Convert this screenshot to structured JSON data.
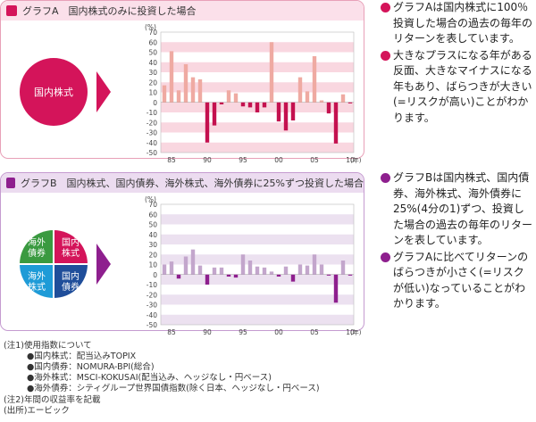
{
  "colors": {
    "accentA": "#d4145a",
    "accentB": "#8e1f8e",
    "stripeA": "#f9d7e0",
    "stripeB": "#ece1f0",
    "barA": "#efaaa2",
    "barNegA": "#c4114f",
    "barB": "#c3a6cc",
    "barNegB": "#8e1f8e"
  },
  "panelA": {
    "title": "グラフA　国内株式のみに投資した場合",
    "circle_label": "国内株式"
  },
  "panelB": {
    "title": "グラフB　国内株式、国内債券、海外株式、海外債券に25%ずつ投資した場合",
    "quadrants": [
      "海外\n債券",
      "国内\n株式",
      "海外\n株式",
      "国内\n債券"
    ]
  },
  "chart_data": [
    {
      "type": "bar",
      "title": "",
      "ylabel": "(%)",
      "xlabel": "(年)",
      "ylim": [
        -50,
        70
      ],
      "yticks": [
        70,
        60,
        50,
        40,
        30,
        20,
        10,
        0,
        -10,
        -20,
        -30,
        -40,
        -50
      ],
      "xtick_labels": [
        "85",
        "90",
        "95",
        "00",
        "05",
        "10"
      ],
      "x": [
        1984,
        1985,
        1986,
        1987,
        1988,
        1989,
        1990,
        1991,
        1992,
        1993,
        1994,
        1995,
        1996,
        1997,
        1998,
        1999,
        2000,
        2001,
        2002,
        2003,
        2004,
        2005,
        2006,
        2007,
        2008,
        2009,
        2010
      ],
      "values": [
        17,
        51,
        12,
        38,
        25,
        23,
        -40,
        -23,
        -2,
        12,
        9,
        -4,
        -5,
        -10,
        -5,
        60,
        -19,
        -28,
        -18,
        25,
        11,
        46,
        2,
        -11,
        -41,
        8,
        -1
      ]
    },
    {
      "type": "bar",
      "title": "",
      "ylabel": "(%)",
      "xlabel": "(年)",
      "ylim": [
        -50,
        70
      ],
      "yticks": [
        70,
        60,
        50,
        40,
        30,
        20,
        10,
        0,
        -10,
        -20,
        -30,
        -40,
        -50
      ],
      "xtick_labels": [
        "85",
        "90",
        "95",
        "00",
        "05",
        "10"
      ],
      "x": [
        1984,
        1985,
        1986,
        1987,
        1988,
        1989,
        1990,
        1991,
        1992,
        1993,
        1994,
        1995,
        1996,
        1997,
        1998,
        1999,
        2000,
        2001,
        2002,
        2003,
        2004,
        2005,
        2006,
        2007,
        2008,
        2009,
        2010
      ],
      "values": [
        10,
        13,
        -4,
        18,
        25,
        9,
        -10,
        7,
        7,
        -2,
        -3,
        20,
        14,
        8,
        7,
        3,
        -2,
        8,
        -7,
        10,
        9,
        20,
        10,
        -1,
        -28,
        14,
        -1
      ]
    }
  ],
  "bulletsA": [
    "グラフAは国内株式に100％投資した場合の過去の毎年のリターンを表しています。",
    "大きなプラスになる年がある反面、大きなマイナスになる年もあり、ばらつきが大きい(=リスクが高い)ことがわかります。"
  ],
  "bulletsB": [
    "グラフBは国内株式、国内債券、海外株式、海外債券に25%(4分の1)ずつ、投資した場合の過去の毎年のリターンを表しています。",
    "グラフAに比べてリターンのばらつきが小さく(=リスクが低い)なっていることがわかります。"
  ],
  "notes": [
    "(注1)使用指数について",
    "●国内株式：配当込みTOPIX",
    "●国内債券：NOMURA-BPI(総合)",
    "●海外株式：MSCI-KOKUSAI(配当込み、ヘッジなし・円ベース)",
    "●海外債券：シティグループ世界国債指数(除く日本、ヘッジなし・円ベース)",
    "(注2)年間の収益率を記載",
    "(出所)エービック"
  ]
}
